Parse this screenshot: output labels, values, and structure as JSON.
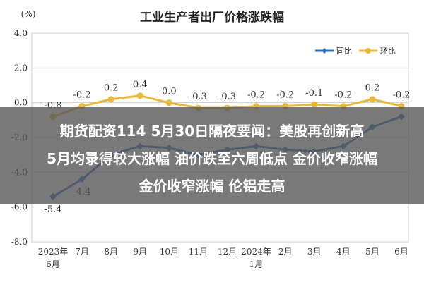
{
  "y_unit": "(%)",
  "chart_data": {
    "type": "line",
    "title": "工业生产者出厂价格涨跌幅",
    "xlabel": "",
    "ylabel": "(%)",
    "ylim": [
      -8.0,
      4.0
    ],
    "yticks": [
      "4.0",
      "2.0",
      "0.0",
      "-2.0",
      "-4.0",
      "-6.0",
      "-8.0"
    ],
    "categories": [
      "2023年6月",
      "7月",
      "8月",
      "9月",
      "10月",
      "11月",
      "12月",
      "2024年1月",
      "2月",
      "3月",
      "4月",
      "5月",
      "6月"
    ],
    "tick_labels": [
      {
        "line1": "2023年",
        "line2": "6月"
      },
      {
        "line1": "7月",
        "line2": ""
      },
      {
        "line1": "8月",
        "line2": ""
      },
      {
        "line1": "9月",
        "line2": ""
      },
      {
        "line1": "10月",
        "line2": ""
      },
      {
        "line1": "11月",
        "line2": ""
      },
      {
        "line1": "12月",
        "line2": ""
      },
      {
        "line1": "2024年",
        "line2": "1月"
      },
      {
        "line1": "2月",
        "line2": ""
      },
      {
        "line1": "3月",
        "line2": ""
      },
      {
        "line1": "4月",
        "line2": ""
      },
      {
        "line1": "5月",
        "line2": ""
      },
      {
        "line1": "6月",
        "line2": ""
      }
    ],
    "grid": true,
    "legend_position": "top-right",
    "series": [
      {
        "name": "同比",
        "color": "#2e6fbd",
        "marker": "diamond",
        "values": [
          -5.4,
          -4.4,
          -3.0,
          -2.5,
          -2.6,
          -3.0,
          -2.7,
          -2.5,
          -2.7,
          -2.8,
          -2.5,
          -1.4,
          -0.8
        ],
        "labels": [
          "-5.4",
          "-4.4",
          "",
          "",
          "",
          "",
          "",
          "",
          "",
          "",
          "",
          "",
          ""
        ]
      },
      {
        "name": "环比",
        "color": "#e8b93a",
        "marker": "circle",
        "values": [
          -0.8,
          -0.2,
          0.2,
          0.4,
          0.0,
          -0.3,
          -0.3,
          -0.2,
          -0.2,
          -0.1,
          -0.2,
          0.2,
          -0.2
        ],
        "labels": [
          "-0.8",
          "-0.2",
          "0.2",
          "0.4",
          "0.0",
          "-0.3",
          "-0.3",
          "-0.2",
          "-0.2",
          "-0.1",
          "-0.2",
          "0.2",
          "-0.2"
        ]
      }
    ]
  },
  "overlay": {
    "line1": "期货配资114 5月30日隔夜要闻：美股再创新高",
    "line2": "5月均录得较大涨幅 油价跌至六周低点 金价收窄涨幅",
    "line3": "金价收窄涨幅 伦铝走高"
  }
}
